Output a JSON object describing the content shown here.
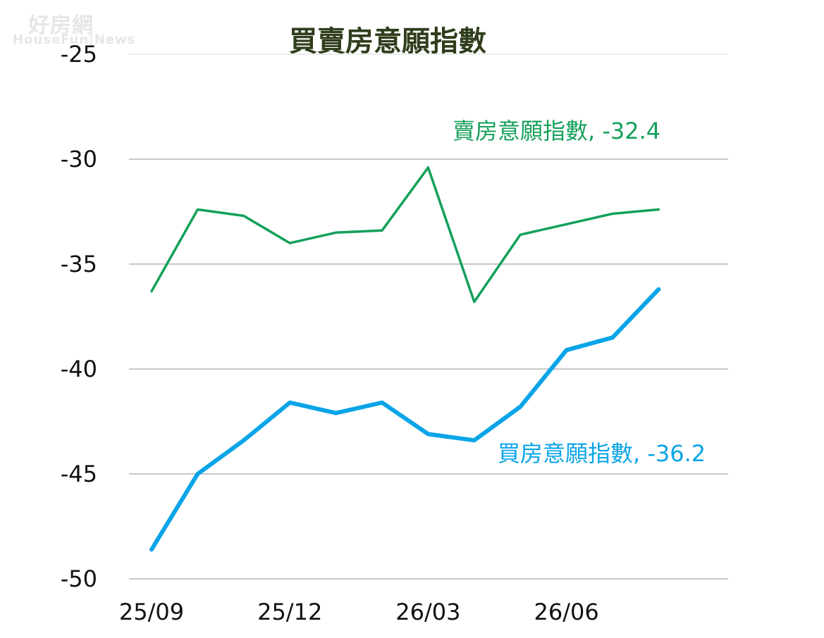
{
  "watermark": {
    "brand": "好房網",
    "sub": "HouseFun|News"
  },
  "colors": {
    "sell": "#14a05a",
    "buy": "#0aa4e8",
    "title": "#2f3d1c",
    "grid": "#c8c8c8",
    "text": "#111111"
  },
  "chart_data": {
    "type": "line",
    "title": "買賣房意願指數",
    "xlabel": "",
    "ylabel": "",
    "ylim": [
      -50,
      -25
    ],
    "yticks": [
      "-25",
      "-30",
      "-35",
      "-40",
      "-45",
      "-50"
    ],
    "x": [
      "25/09",
      "25/10",
      "25/11",
      "25/12",
      "26/01",
      "26/02",
      "26/03",
      "26/04",
      "26/05",
      "26/06",
      "26/07",
      "26/08"
    ],
    "xtick_labels": [
      "25/09",
      "25/12",
      "26/03",
      "26/06"
    ],
    "grid": true,
    "series": [
      {
        "key": "sell",
        "values": [
          -36.3,
          -32.4,
          -32.7,
          -34.0,
          -33.5,
          -33.4,
          -30.4,
          -36.8,
          -33.6,
          -33.1,
          -32.6,
          -32.4
        ],
        "label": "賣房意願指數, -32.4"
      },
      {
        "key": "buy",
        "values": [
          -48.6,
          -45.0,
          -43.4,
          -41.6,
          -42.1,
          -41.6,
          -43.1,
          -43.4,
          -41.8,
          -39.1,
          -38.5,
          -36.2
        ],
        "label": "買房意願指數, -36.2"
      }
    ]
  }
}
